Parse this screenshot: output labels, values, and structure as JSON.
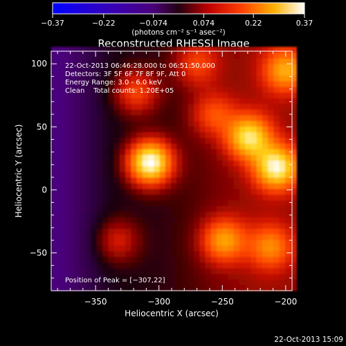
{
  "chart_data": {
    "type": "heatmap",
    "title": "Reconstructed RHESSI Image",
    "xlabel": "Heliocentric X (arcsec)",
    "ylabel": "Heliocentric Y (arcsec)",
    "xlim": [
      -385,
      -195
    ],
    "ylim": [
      -80,
      110
    ],
    "xticks": [
      {
        "value": -350,
        "label": "−350"
      },
      {
        "value": -300,
        "label": "−300"
      },
      {
        "value": -250,
        "label": "−250"
      },
      {
        "value": -200,
        "label": "−200"
      }
    ],
    "yticks": [
      {
        "value": -50,
        "label": "−50"
      },
      {
        "value": 0,
        "label": "0"
      },
      {
        "value": 50,
        "label": "50"
      },
      {
        "value": 100,
        "label": "100"
      }
    ],
    "colorbar": {
      "min": -0.37,
      "max": 0.37,
      "ticks": [
        {
          "value": -0.37,
          "label": "−0.37"
        },
        {
          "value": -0.22,
          "label": "−0.22"
        },
        {
          "value": -0.074,
          "label": "−0.074"
        },
        {
          "value": 0.074,
          "label": "0.074"
        },
        {
          "value": 0.22,
          "label": "0.22"
        },
        {
          "value": 0.37,
          "label": "0.37"
        }
      ],
      "units_label": "(photons cm⁻² s⁻¹ asec⁻²)"
    },
    "info_lines": [
      "22-Oct-2013 06:46:28.000 to 06:51:50.000",
      "Detectors: 3F 5F 6F 7F 8F 9F, Att 0",
      "Energy Range: 3.0 - 6.0 keV",
      "Clean    Total counts: 1.20E+05"
    ],
    "peak_label": "Position of Peak = [−307,22]",
    "peak": {
      "x": -307,
      "y": 22
    },
    "sources": [
      {
        "x": -307,
        "y": 22,
        "value": 0.37
      },
      {
        "x": -229,
        "y": 42,
        "value": 0.27
      },
      {
        "x": -207,
        "y": 18,
        "value": 0.3
      },
      {
        "x": -249,
        "y": -40,
        "value": 0.2
      },
      {
        "x": -200,
        "y": 95,
        "value": 0.2
      },
      {
        "x": -212,
        "y": -45,
        "value": 0.16
      },
      {
        "x": -318,
        "y": 78,
        "value": 0.14
      },
      {
        "x": -333,
        "y": -40,
        "value": 0.1
      },
      {
        "x": -270,
        "y": 100,
        "value": 0.12
      },
      {
        "x": -257,
        "y": 60,
        "value": 0.12
      }
    ]
  },
  "footer": {
    "timestamp": "22-Oct-2013 15:09"
  }
}
